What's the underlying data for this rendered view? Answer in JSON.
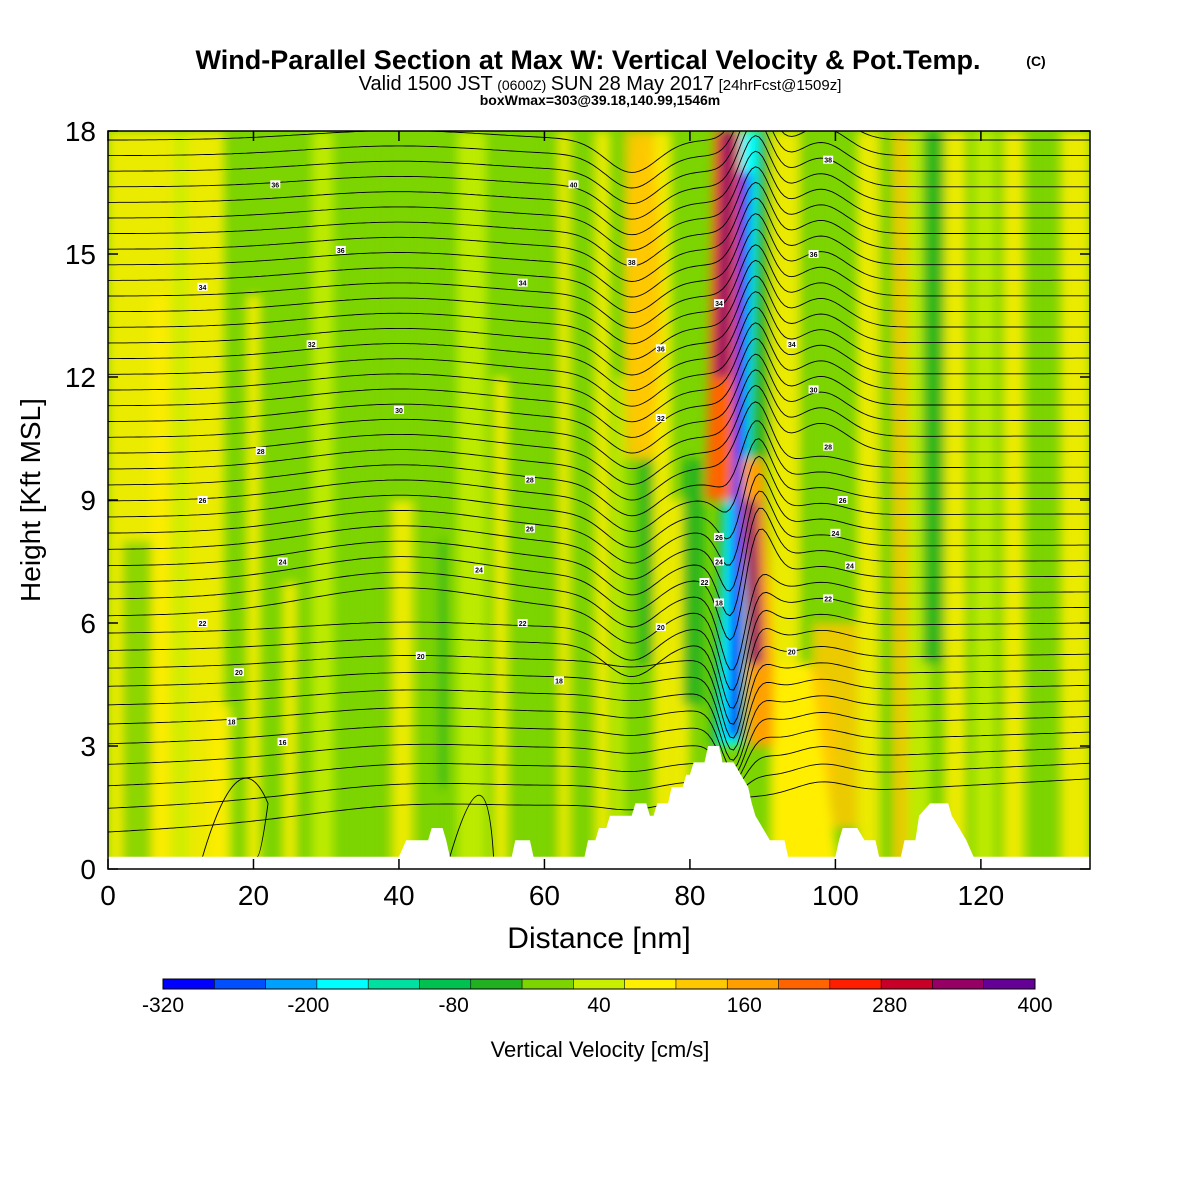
{
  "chart_data": {
    "type": "heatmap",
    "title": "Wind-Parallel Section at Max W: Vertical Velocity & Pot.Temp.",
    "copyright_mark": "(C)",
    "subtitle": {
      "valid_prefix": "Valid 1500 JST",
      "utc": "(0600Z)",
      "date": "SUN 28 May 2017",
      "forecast": "[24hrFcst@1509z]"
    },
    "box_line": "boxWmax=303@39.18,140.99,1546m",
    "xlabel": "Distance [nm]",
    "ylabel": "Height [Kft MSL]",
    "xlim": [
      0,
      135
    ],
    "ylim": [
      0,
      18
    ],
    "x_ticks": [
      {
        "value": 0,
        "label": "0"
      },
      {
        "value": 20,
        "label": "20"
      },
      {
        "value": 40,
        "label": "40"
      },
      {
        "value": 60,
        "label": "60"
      },
      {
        "value": 80,
        "label": "80"
      },
      {
        "value": 100,
        "label": "100"
      },
      {
        "value": 120,
        "label": "120"
      }
    ],
    "y_ticks": [
      {
        "value": 0,
        "label": "0"
      },
      {
        "value": 3,
        "label": "3"
      },
      {
        "value": 6,
        "label": "6"
      },
      {
        "value": 9,
        "label": "9"
      },
      {
        "value": 12,
        "label": "12"
      },
      {
        "value": 15,
        "label": "15"
      },
      {
        "value": 18,
        "label": "18"
      }
    ],
    "colorbar": {
      "label": "Vertical Velocity [cm/s]",
      "min": -320,
      "max": 400,
      "step": 40,
      "colors": [
        "#0000ff",
        "#0050ff",
        "#00a0ff",
        "#00ffff",
        "#00e0a0",
        "#00c050",
        "#20b020",
        "#7cd400",
        "#c8ee00",
        "#ffee00",
        "#ffc800",
        "#ffa000",
        "#ff6400",
        "#ff1e00",
        "#c80028",
        "#960064",
        "#640096"
      ],
      "tick_labels": [
        {
          "value": -320,
          "label": "-320"
        },
        {
          "value": -200,
          "label": "-200"
        },
        {
          "value": -80,
          "label": "-80"
        },
        {
          "value": 40,
          "label": "40"
        },
        {
          "value": 160,
          "label": "160"
        },
        {
          "value": 280,
          "label": "280"
        },
        {
          "value": 400,
          "label": "400"
        }
      ]
    },
    "terrain": {
      "points": [
        [
          0,
          0.3
        ],
        [
          40,
          0.3
        ],
        [
          41,
          0.7
        ],
        [
          44,
          0.7
        ],
        [
          44.5,
          1.0
        ],
        [
          46,
          1.0
        ],
        [
          46.5,
          0.7
        ],
        [
          47,
          0.3
        ],
        [
          55.5,
          0.3
        ],
        [
          56,
          0.7
        ],
        [
          58,
          0.7
        ],
        [
          58.5,
          0.3
        ],
        [
          65.5,
          0.3
        ],
        [
          66,
          0.7
        ],
        [
          67,
          0.7
        ],
        [
          67.5,
          1.0
        ],
        [
          68.5,
          1.0
        ],
        [
          69,
          1.3
        ],
        [
          72,
          1.3
        ],
        [
          72.5,
          1.6
        ],
        [
          74,
          1.6
        ],
        [
          74.5,
          1.3
        ],
        [
          75,
          1.3
        ],
        [
          75.5,
          1.6
        ],
        [
          77,
          1.6
        ],
        [
          77.5,
          2.0
        ],
        [
          79,
          2.0
        ],
        [
          79.5,
          2.3
        ],
        [
          80,
          2.3
        ],
        [
          80.5,
          2.6
        ],
        [
          81,
          2.6
        ],
        [
          82,
          2.6
        ],
        [
          82.5,
          3.0
        ],
        [
          84,
          3.0
        ],
        [
          84.5,
          2.6
        ],
        [
          86,
          2.6
        ],
        [
          87,
          2.3
        ],
        [
          88,
          2.0
        ],
        [
          88.5,
          1.6
        ],
        [
          89,
          1.3
        ],
        [
          90,
          1.0
        ],
        [
          91,
          0.7
        ],
        [
          93,
          0.7
        ],
        [
          93.5,
          0.3
        ],
        [
          100,
          0.3
        ],
        [
          100.5,
          0.7
        ],
        [
          101,
          1.0
        ],
        [
          103,
          1.0
        ],
        [
          104,
          0.7
        ],
        [
          105.5,
          0.7
        ],
        [
          106,
          0.3
        ],
        [
          109,
          0.3
        ],
        [
          109.5,
          0.7
        ],
        [
          111,
          0.7
        ],
        [
          111.5,
          1.3
        ],
        [
          113,
          1.6
        ],
        [
          115.5,
          1.6
        ],
        [
          116,
          1.3
        ],
        [
          117,
          1.0
        ],
        [
          118,
          0.7
        ],
        [
          119,
          0.3
        ],
        [
          135,
          0.3
        ]
      ]
    },
    "w_features": [
      {
        "name": "updraft-core",
        "value": 320,
        "x": [
          84.5,
          86.5
        ],
        "y": [
          13,
          18
        ]
      },
      {
        "name": "updraft-mid",
        "value": 200,
        "x": [
          84,
          86
        ],
        "y": [
          11.5,
          16.5
        ]
      },
      {
        "name": "downdraft-upper",
        "value": -200,
        "x": [
          86.5,
          88.5
        ],
        "y": [
          13,
          18
        ]
      },
      {
        "name": "downdraft-lower",
        "value": -320,
        "x": [
          85.5,
          87
        ],
        "y": [
          3.2,
          6
        ]
      },
      {
        "name": "updraft-lower",
        "value": 240,
        "x": [
          88,
          90
        ],
        "y": [
          5,
          9.5
        ]
      },
      {
        "name": "updraft-western",
        "value": 80,
        "x": [
          71,
          76
        ],
        "y": [
          10,
          18
        ]
      },
      {
        "name": "updraft-eastern",
        "value": 80,
        "x": [
          92,
          100
        ],
        "y": [
          1,
          5
        ]
      }
    ],
    "theta_contour_labels": [
      {
        "x": 23,
        "y": 16.7,
        "label": "36"
      },
      {
        "x": 32,
        "y": 15.1,
        "label": "36"
      },
      {
        "x": 13,
        "y": 14.2,
        "label": "34"
      },
      {
        "x": 28,
        "y": 12.8,
        "label": "32"
      },
      {
        "x": 40,
        "y": 11.2,
        "label": "30"
      },
      {
        "x": 21,
        "y": 10.2,
        "label": "28"
      },
      {
        "x": 13,
        "y": 9.0,
        "label": "26"
      },
      {
        "x": 24,
        "y": 7.5,
        "label": "24"
      },
      {
        "x": 13,
        "y": 6.0,
        "label": "22"
      },
      {
        "x": 18,
        "y": 4.8,
        "label": "20"
      },
      {
        "x": 17,
        "y": 3.6,
        "label": "18"
      },
      {
        "x": 24,
        "y": 3.1,
        "label": "16"
      },
      {
        "x": 57,
        "y": 14.3,
        "label": "34"
      },
      {
        "x": 58,
        "y": 9.5,
        "label": "28"
      },
      {
        "x": 58,
        "y": 8.3,
        "label": "26"
      },
      {
        "x": 51,
        "y": 7.3,
        "label": "24"
      },
      {
        "x": 57,
        "y": 6.0,
        "label": "22"
      },
      {
        "x": 43,
        "y": 5.2,
        "label": "20"
      },
      {
        "x": 62,
        "y": 4.6,
        "label": "18"
      },
      {
        "x": 64,
        "y": 16.7,
        "label": "40"
      },
      {
        "x": 72,
        "y": 14.8,
        "label": "38"
      },
      {
        "x": 76,
        "y": 12.7,
        "label": "36"
      },
      {
        "x": 76,
        "y": 11.0,
        "label": "32"
      },
      {
        "x": 76,
        "y": 5.9,
        "label": "20"
      },
      {
        "x": 84,
        "y": 13.8,
        "label": "34"
      },
      {
        "x": 84,
        "y": 8.1,
        "label": "26"
      },
      {
        "x": 84,
        "y": 7.5,
        "label": "24"
      },
      {
        "x": 82,
        "y": 7.0,
        "label": "22"
      },
      {
        "x": 84,
        "y": 6.5,
        "label": "18"
      },
      {
        "x": 99,
        "y": 17.3,
        "label": "38"
      },
      {
        "x": 97,
        "y": 15.0,
        "label": "36"
      },
      {
        "x": 94,
        "y": 12.8,
        "label": "34"
      },
      {
        "x": 97,
        "y": 11.7,
        "label": "30"
      },
      {
        "x": 99,
        "y": 10.3,
        "label": "28"
      },
      {
        "x": 101,
        "y": 9.0,
        "label": "26"
      },
      {
        "x": 100,
        "y": 8.2,
        "label": "24"
      },
      {
        "x": 102,
        "y": 7.4,
        "label": "24"
      },
      {
        "x": 99,
        "y": 6.6,
        "label": "22"
      },
      {
        "x": 94,
        "y": 5.3,
        "label": "20"
      }
    ]
  }
}
